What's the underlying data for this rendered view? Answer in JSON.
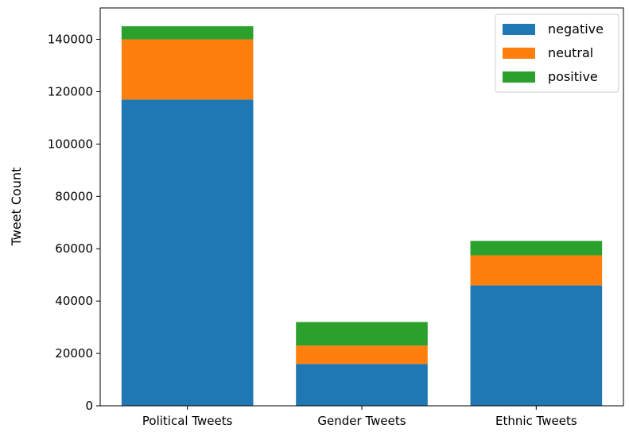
{
  "chart_data": {
    "type": "bar",
    "stacked": true,
    "categories": [
      "Political Tweets",
      "Gender Tweets",
      "Ethnic Tweets"
    ],
    "series": [
      {
        "name": "negative",
        "values": [
          117000,
          16000,
          46000
        ],
        "color": "#1f77b4"
      },
      {
        "name": "neutral",
        "values": [
          23000,
          7000,
          11500
        ],
        "color": "#ff7f0e"
      },
      {
        "name": "positive",
        "values": [
          5000,
          9000,
          5500
        ],
        "color": "#2ca02c"
      }
    ],
    "title": "",
    "xlabel": "",
    "ylabel": "Tweet Count",
    "ylim": [
      0,
      152000
    ],
    "yticks": [
      0,
      20000,
      40000,
      60000,
      80000,
      100000,
      120000,
      140000
    ],
    "grid": false,
    "legend_position": "top-right"
  }
}
